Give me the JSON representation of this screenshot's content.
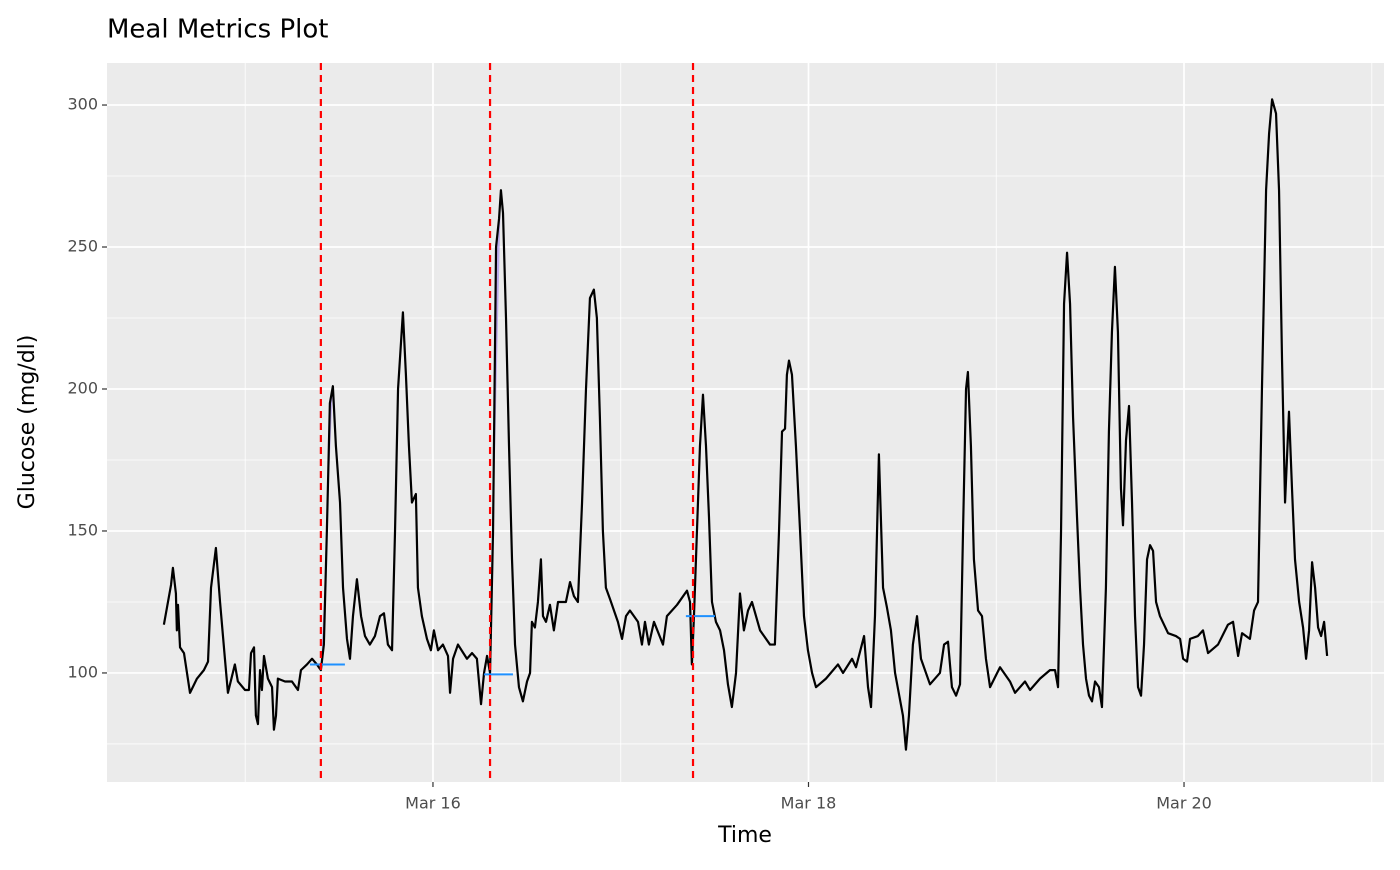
{
  "chart_data": {
    "type": "line",
    "title": "Meal Metrics Plot",
    "x_label": "Time",
    "y_label": "Glucose (mg/dl)",
    "line_color": "#000000",
    "x": [
      14.567,
      14.605,
      14.615,
      14.631,
      14.636,
      14.642,
      14.653,
      14.674,
      14.706,
      14.743,
      14.78,
      14.802,
      14.818,
      14.844,
      14.866,
      14.892,
      14.908,
      14.945,
      14.961,
      14.999,
      15.02,
      15.031,
      15.047,
      15.057,
      15.068,
      15.079,
      15.089,
      15.1,
      15.121,
      15.143,
      15.153,
      15.164,
      15.174,
      15.212,
      15.249,
      15.281,
      15.297,
      15.329,
      15.356,
      15.382,
      15.403,
      15.419,
      15.435,
      15.451,
      15.467,
      15.483,
      15.505,
      15.521,
      15.542,
      15.558,
      15.574,
      15.595,
      15.617,
      15.638,
      15.664,
      15.691,
      15.718,
      15.739,
      15.76,
      15.782,
      15.798,
      15.814,
      15.84,
      15.856,
      15.872,
      15.888,
      15.909,
      15.92,
      15.941,
      15.968,
      15.989,
      16.005,
      16.027,
      16.053,
      16.08,
      16.091,
      16.107,
      16.133,
      16.181,
      16.208,
      16.234,
      16.256,
      16.272,
      16.288,
      16.304,
      16.32,
      16.336,
      16.352,
      16.362,
      16.373,
      16.389,
      16.405,
      16.421,
      16.437,
      16.458,
      16.479,
      16.501,
      16.517,
      16.527,
      16.543,
      16.559,
      16.575,
      16.586,
      16.602,
      16.623,
      16.644,
      16.666,
      16.708,
      16.73,
      16.751,
      16.772,
      16.794,
      16.815,
      16.836,
      16.857,
      16.873,
      16.889,
      16.905,
      16.921,
      16.943,
      16.985,
      17.007,
      17.028,
      17.049,
      17.092,
      17.113,
      17.129,
      17.15,
      17.177,
      17.225,
      17.246,
      17.3,
      17.353,
      17.369,
      17.379,
      17.39,
      17.406,
      17.422,
      17.438,
      17.454,
      17.47,
      17.486,
      17.507,
      17.529,
      17.55,
      17.571,
      17.592,
      17.614,
      17.635,
      17.656,
      17.678,
      17.699,
      17.742,
      17.795,
      17.821,
      17.843,
      17.859,
      17.875,
      17.885,
      17.896,
      17.912,
      17.933,
      17.955,
      17.976,
      17.997,
      18.019,
      18.04,
      18.093,
      18.157,
      18.184,
      18.232,
      18.253,
      18.296,
      18.317,
      18.333,
      18.354,
      18.375,
      18.397,
      18.418,
      18.439,
      18.461,
      18.503,
      18.519,
      18.535,
      18.556,
      18.578,
      18.599,
      18.647,
      18.7,
      18.722,
      18.743,
      18.764,
      18.786,
      18.807,
      18.823,
      18.839,
      18.849,
      18.865,
      18.881,
      18.903,
      18.924,
      18.945,
      18.967,
      19.02,
      19.073,
      19.1,
      19.153,
      19.18,
      19.233,
      19.286,
      19.313,
      19.329,
      19.345,
      19.361,
      19.377,
      19.393,
      19.409,
      19.43,
      19.446,
      19.462,
      19.478,
      19.494,
      19.51,
      19.526,
      19.547,
      19.563,
      19.584,
      19.6,
      19.616,
      19.632,
      19.648,
      19.664,
      19.675,
      19.691,
      19.707,
      19.723,
      19.739,
      19.755,
      19.771,
      19.787,
      19.803,
      19.819,
      19.835,
      19.851,
      19.872,
      19.915,
      19.957,
      19.979,
      19.995,
      20.016,
      20.032,
      20.074,
      20.101,
      20.128,
      20.181,
      20.234,
      20.261,
      20.288,
      20.309,
      20.351,
      20.373,
      20.394,
      20.415,
      20.437,
      20.453,
      20.469,
      20.49,
      20.506,
      20.522,
      20.538,
      20.559,
      20.575,
      20.591,
      20.613,
      20.634,
      20.65,
      20.666,
      20.682,
      20.698,
      20.714,
      20.73,
      20.746,
      20.762
    ],
    "values": [
      117,
      131,
      137,
      128,
      115,
      124,
      109,
      107,
      93,
      98,
      101,
      104,
      130,
      144,
      125,
      105,
      93,
      103,
      97,
      94,
      94,
      107,
      109,
      85,
      82,
      101,
      94,
      106,
      98,
      95,
      80,
      85,
      98,
      97,
      97,
      94,
      101,
      103,
      105,
      103,
      101,
      110,
      150,
      195,
      201,
      180,
      160,
      130,
      112,
      105,
      120,
      133,
      120,
      113,
      110,
      113,
      120,
      121,
      110,
      108,
      150,
      200,
      227,
      205,
      180,
      160,
      163,
      130,
      120,
      112,
      108,
      115,
      108,
      110,
      106,
      93,
      105,
      110,
      105,
      107,
      105,
      89,
      100,
      106,
      100,
      150,
      250,
      260,
      270,
      262,
      225,
      180,
      140,
      110,
      95,
      90,
      97,
      100,
      118,
      116,
      125,
      140,
      120,
      118,
      124,
      115,
      125,
      125,
      132,
      127,
      125,
      160,
      200,
      232,
      235,
      225,
      190,
      150,
      130,
      126,
      118,
      112,
      120,
      122,
      118,
      110,
      118,
      110,
      118,
      110,
      120,
      124,
      129,
      125,
      103,
      120,
      150,
      180,
      198,
      180,
      155,
      125,
      118,
      115,
      108,
      96,
      88,
      100,
      128,
      115,
      122,
      125,
      115,
      110,
      110,
      150,
      185,
      186,
      205,
      210,
      205,
      180,
      150,
      120,
      108,
      100,
      95,
      98,
      103,
      100,
      105,
      102,
      113,
      95,
      88,
      120,
      177,
      130,
      123,
      115,
      100,
      85,
      73,
      85,
      110,
      120,
      105,
      96,
      100,
      110,
      111,
      95,
      92,
      96,
      150,
      200,
      206,
      180,
      140,
      122,
      120,
      105,
      95,
      102,
      97,
      93,
      97,
      94,
      98,
      101,
      101,
      95,
      150,
      230,
      248,
      230,
      190,
      155,
      130,
      110,
      98,
      92,
      90,
      97,
      95,
      88,
      130,
      185,
      220,
      243,
      220,
      165,
      152,
      182,
      194,
      160,
      120,
      95,
      92,
      110,
      140,
      145,
      143,
      125,
      120,
      114,
      113,
      112,
      105,
      104,
      112,
      113,
      115,
      107,
      110,
      117,
      118,
      106,
      114,
      112,
      122,
      125,
      200,
      270,
      290,
      302,
      297,
      270,
      210,
      160,
      192,
      165,
      140,
      125,
      116,
      105,
      115,
      139,
      130,
      116,
      113,
      118,
      106
    ],
    "meals": [
      {
        "time": 15.403,
        "peak_time": 15.467,
        "baseline": 103,
        "baseline_x": [
          15.345,
          15.531
        ]
      },
      {
        "time": 16.304,
        "peak_time": 16.362,
        "baseline": 99.5,
        "baseline_x": [
          16.272,
          16.426
        ]
      },
      {
        "time": 17.385,
        "peak_time": 17.438,
        "baseline": 120,
        "baseline_x": [
          17.347,
          17.502
        ]
      }
    ],
    "meal_line_color": "#ff0000",
    "baseline_color": "#1e90ff",
    "area_color": "#9b7fe8",
    "xlim": [
      14.264,
      21.065
    ],
    "ylim": [
      61.6,
      314.8
    ],
    "xticks": [
      {
        "value": 16,
        "label": "Mar 16"
      },
      {
        "value": 18,
        "label": "Mar 18"
      },
      {
        "value": 20,
        "label": "Mar 20"
      }
    ],
    "x_minor_ticks": [
      15,
      17,
      19,
      21
    ],
    "yticks": [
      100,
      150,
      200,
      250,
      300
    ],
    "y_minor_ticks": [
      75,
      125,
      175,
      225,
      275
    ],
    "grid": true
  }
}
